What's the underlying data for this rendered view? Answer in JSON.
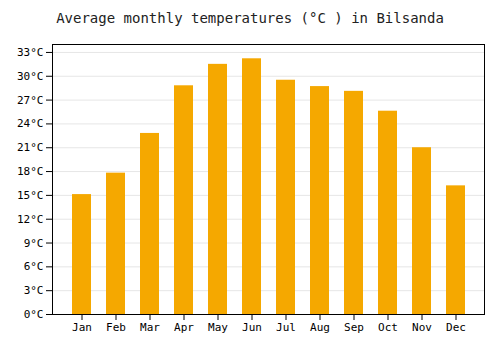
{
  "chart_data": {
    "type": "bar",
    "title": "Average monthly temperatures (°C ) in Bilsanda",
    "categories": [
      "Jan",
      "Feb",
      "Mar",
      "Apr",
      "May",
      "Jun",
      "Jul",
      "Aug",
      "Sep",
      "Oct",
      "Nov",
      "Dec"
    ],
    "values": [
      15.1,
      17.8,
      22.8,
      28.8,
      31.5,
      32.2,
      29.5,
      28.7,
      28.1,
      25.6,
      21.0,
      16.2
    ],
    "color": "#F5A800",
    "ylim": [
      0,
      34
    ],
    "yticks": [
      {
        "value": 0,
        "label": "0°C"
      },
      {
        "value": 3,
        "label": "3°C"
      },
      {
        "value": 6,
        "label": "6°C"
      },
      {
        "value": 9,
        "label": "9°C"
      },
      {
        "value": 12,
        "label": "12°C"
      },
      {
        "value": 15,
        "label": "15°C"
      },
      {
        "value": 18,
        "label": "18°C"
      },
      {
        "value": 21,
        "label": "21°C"
      },
      {
        "value": 24,
        "label": "24°C"
      },
      {
        "value": 27,
        "label": "27°C"
      },
      {
        "value": 30,
        "label": "30°C"
      },
      {
        "value": 33,
        "label": "33°C"
      }
    ],
    "grid": true
  }
}
